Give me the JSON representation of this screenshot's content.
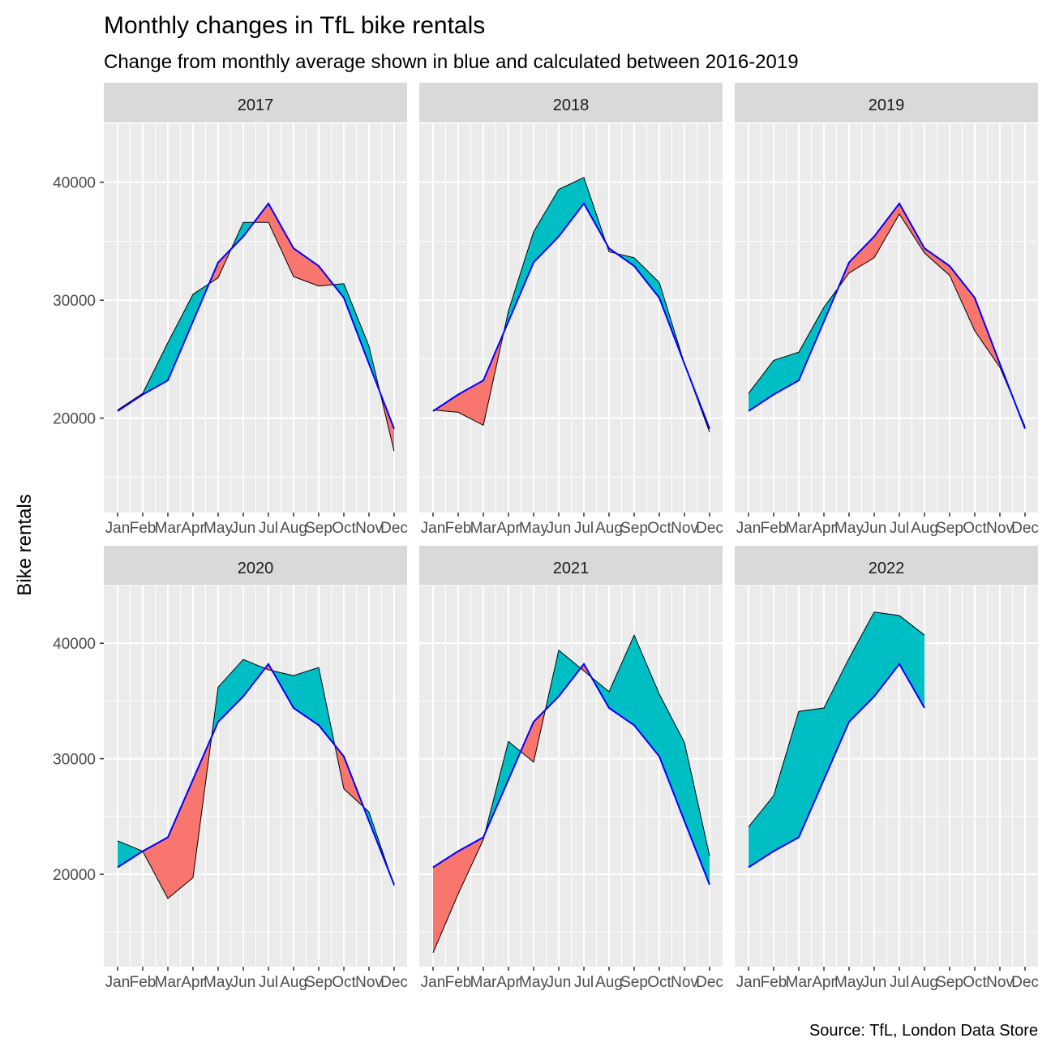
{
  "title": "Monthly changes in TfL bike rentals",
  "subtitle": "Change from monthly average shown in blue and calculated between 2016-2019",
  "caption": "Source: TfL, London Data Store",
  "colors": {
    "panel_bg": "#EBEBEB",
    "strip_bg": "#D9D9D9",
    "grid": "#FFFFFF",
    "above_fill": "#00BFC4",
    "below_fill": "#F8766D",
    "average_line": "#0000FF",
    "actual_line": "#000000"
  },
  "chart_data": {
    "type": "area",
    "ylabel": "Bike rentals",
    "xlabel": "",
    "ylim": [
      12000,
      45000
    ],
    "yticks": [
      20000,
      30000,
      40000
    ],
    "months": [
      "Jan",
      "Feb",
      "Mar",
      "Apr",
      "May",
      "Jun",
      "Jul",
      "Aug",
      "Sep",
      "Oct",
      "Nov",
      "Dec"
    ],
    "legend": "none",
    "grid": true,
    "average": [
      20600,
      22000,
      23200,
      28200,
      33200,
      35400,
      38200,
      34400,
      32900,
      30200,
      24600,
      19100
    ],
    "panels": [
      {
        "label": "2017",
        "actual": [
          20700,
          22100,
          26400,
          30500,
          31900,
          36600,
          36600,
          32000,
          31200,
          31400,
          26100,
          17200
        ]
      },
      {
        "label": "2018",
        "actual": [
          20700,
          20500,
          19400,
          29100,
          35800,
          39400,
          40400,
          34100,
          33600,
          31500,
          24600,
          18800
        ]
      },
      {
        "label": "2019",
        "actual": [
          22100,
          24900,
          25600,
          29400,
          32300,
          33600,
          37300,
          34000,
          32100,
          27400,
          24300,
          19300
        ]
      },
      {
        "label": "2020",
        "actual": [
          22900,
          22000,
          17900,
          19700,
          36200,
          38600,
          37700,
          37200,
          37900,
          27400,
          25400,
          19000
        ]
      },
      {
        "label": "2021",
        "actual": [
          13200,
          18300,
          23000,
          31500,
          29700,
          39400,
          37600,
          35800,
          40700,
          35600,
          31400,
          21600
        ]
      },
      {
        "label": "2022",
        "actual": [
          24100,
          26800,
          34100,
          34400,
          38700,
          42700,
          42400,
          40700,
          null,
          null,
          null,
          null
        ]
      }
    ]
  }
}
